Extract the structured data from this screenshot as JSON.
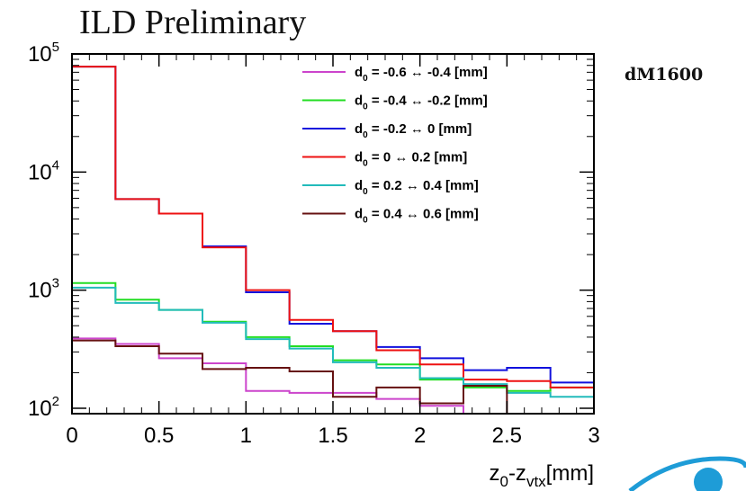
{
  "header": {
    "preliminary_label": "ILD Preliminary",
    "sample_label": "dM1600"
  },
  "chart_data": {
    "type": "histogram",
    "title": "",
    "xlabel": "z0-zvtx[mm]",
    "xlabel_parts": {
      "z1": "z",
      "s1": "0",
      "dash": "-z",
      "s2": "vtx",
      "unit": "[mm]"
    },
    "ylabel": "",
    "xlim": [
      0,
      3
    ],
    "ylim": [
      90,
      100000
    ],
    "y_scale": "log",
    "x_ticks": [
      "0",
      "0.5",
      "1",
      "1.5",
      "2",
      "2.5",
      "3"
    ],
    "x_tick_values": [
      0,
      0.5,
      1,
      1.5,
      2,
      2.5,
      3
    ],
    "y_tick_values": [
      100,
      1000,
      10000,
      100000
    ],
    "y_tick_labels": [
      {
        "base": "10",
        "exp": "2"
      },
      {
        "base": "10",
        "exp": "3"
      },
      {
        "base": "10",
        "exp": "4"
      },
      {
        "base": "10",
        "exp": "5"
      }
    ],
    "bin_edges": [
      0,
      0.25,
      0.5,
      0.75,
      1.0,
      1.25,
      1.5,
      1.75,
      2.0,
      2.25,
      2.5,
      2.75,
      3.0
    ],
    "legend_position": "top-right",
    "series": [
      {
        "name": "d0 = -0.6 ↔ -0.4 [mm]",
        "pre": "d",
        "sub": "0",
        "post": " = -0.6 ↔ -0.4 [mm]",
        "color": "#cc44cc",
        "values": [
          390,
          350,
          265,
          240,
          140,
          135,
          135,
          120,
          105,
          90,
          88,
          85
        ]
      },
      {
        "name": "d0 = -0.4 ↔ -0.2 [mm]",
        "pre": "d",
        "sub": "0",
        "post": " = -0.4 ↔ -0.2 [mm]",
        "color": "#22dd22",
        "values": [
          1150,
          830,
          680,
          540,
          400,
          335,
          255,
          235,
          175,
          150,
          140,
          150
        ]
      },
      {
        "name": "d0 = -0.2 ↔ 0 [mm]",
        "pre": "d",
        "sub": "0",
        "post": " = -0.2 ↔ 0 [mm]",
        "color": "#1111dd",
        "values": [
          78000,
          5900,
          4450,
          2350,
          960,
          520,
          450,
          330,
          265,
          210,
          220,
          165
        ]
      },
      {
        "name": "d0 = 0 ↔ 0.2 [mm]",
        "pre": "d",
        "sub": "0",
        "post": " = 0 ↔ 0.2 [mm]",
        "color": "#ee1111",
        "values": [
          78000,
          5900,
          4450,
          2300,
          1000,
          560,
          450,
          310,
          235,
          175,
          170,
          150
        ]
      },
      {
        "name": "d0 = 0.2 ↔ 0.4 [mm]",
        "pre": "d",
        "sub": "0",
        "post": " = 0.2 ↔ 0.4 [mm]",
        "color": "#22bbbb",
        "values": [
          1050,
          780,
          680,
          530,
          385,
          320,
          245,
          220,
          180,
          160,
          135,
          125
        ]
      },
      {
        "name": "d0 = 0.4 ↔ 0.6 [mm]",
        "pre": "d",
        "sub": "0",
        "post": " = 0.4 ↔ 0.6 [mm]",
        "color": "#661111",
        "values": [
          375,
          335,
          290,
          215,
          220,
          205,
          125,
          150,
          110,
          155,
          88,
          88
        ]
      }
    ]
  }
}
